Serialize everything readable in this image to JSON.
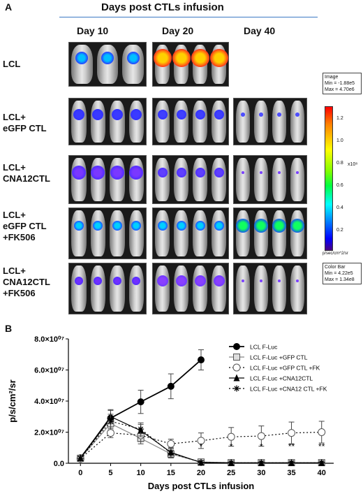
{
  "panel_a": {
    "letter": "A",
    "header": "Days post CTLs infusion",
    "day_labels": [
      "Day 10",
      "Day 20",
      "Day 40"
    ],
    "rows": [
      {
        "label": "LCL"
      },
      {
        "label": "LCL+\neGFP CTL"
      },
      {
        "label": "LCL+\nCNA12CTL"
      },
      {
        "label": "LCL+\neGFP CTL\n+FK506"
      },
      {
        "label": "LCL+\nCNA12CTL\n+FK506"
      }
    ],
    "image_box": {
      "line1": "Image",
      "line2": "Min = -1.88e5",
      "line3": "Max = 4.70e6"
    },
    "colorbar_ticks": [
      "1.2",
      "1.0",
      "0.8",
      "0.6",
      "0.4",
      "0.2"
    ],
    "colorbar_unit": "x10⁸",
    "colorbar_axis": "p/sec/cm^2/sr",
    "colorbar_box": {
      "line1": "Color Bar",
      "line2": "Min = 4.22e5",
      "line3": "Max = 1.34e8"
    }
  },
  "chart_data": {
    "type": "line",
    "panel_letter": "B",
    "xlabel": "Days post CTLs infusion",
    "ylabel": "p/s/cm²/sr",
    "x_ticks": [
      0,
      5,
      10,
      15,
      20,
      25,
      30,
      35,
      40
    ],
    "y_ticks": [
      "0.0",
      "2.0×10⁰⁷",
      "4.0×10⁰⁷",
      "6.0×10⁰⁷",
      "8.0×10⁰⁷"
    ],
    "y_tick_values": [
      0,
      20000000,
      40000000,
      60000000,
      80000000
    ],
    "xlim": [
      -2,
      42
    ],
    "ylim": [
      0,
      80000000
    ],
    "legend_position": "top-right",
    "series": [
      {
        "name": "LCL F-Luc",
        "marker": "filled-circle",
        "line": "solid",
        "x": [
          0,
          5,
          10,
          15,
          20
        ],
        "y": [
          3500000,
          29000000,
          39500000,
          49500000,
          66500000
        ],
        "err": [
          1500000,
          5000000,
          7500000,
          8000000,
          6500000
        ]
      },
      {
        "name": "LCL F-Luc +GFP CTL",
        "marker": "open-square",
        "line": "solid",
        "x": [
          0,
          5,
          10,
          15,
          20,
          25,
          30,
          35,
          40
        ],
        "y": [
          3200000,
          25500000,
          16000000,
          6000000,
          800000,
          400000,
          400000,
          400000,
          400000
        ],
        "err": [
          1000000,
          4000000,
          3500000,
          2500000,
          1200000,
          500000,
          500000,
          500000,
          500000
        ]
      },
      {
        "name": "LCL F-Luc +GFP CTL +FK",
        "marker": "open-circle",
        "line": "dotted",
        "x": [
          0,
          5,
          10,
          15,
          20,
          25,
          30,
          35,
          40
        ],
        "y": [
          3000000,
          19500000,
          18000000,
          12500000,
          14500000,
          17000000,
          17500000,
          19500000,
          20000000
        ],
        "err": [
          1000000,
          3000000,
          4000000,
          3000000,
          5000000,
          6000000,
          6500000,
          7000000,
          7000000
        ]
      },
      {
        "name": "LCL F-Luc +CNA12CTL",
        "marker": "filled-triangle",
        "line": "solid",
        "x": [
          0,
          5,
          10,
          15,
          20,
          25,
          30,
          35,
          40
        ],
        "y": [
          3300000,
          30000000,
          21000000,
          7000000,
          500000,
          300000,
          300000,
          300000,
          300000
        ],
        "err": [
          1000000,
          4500000,
          4000000,
          3000000,
          1000000,
          500000,
          500000,
          500000,
          500000
        ]
      },
      {
        "name": "LCL F-Luc +CNA12 CTL +FK",
        "marker": "star",
        "line": "dotted",
        "x": [
          0,
          5,
          10,
          15,
          20,
          25,
          30,
          35,
          40
        ],
        "y": [
          3100000,
          27000000,
          22000000,
          6500000,
          600000,
          300000,
          300000,
          300000,
          300000
        ],
        "err": [
          1000000,
          4500000,
          4000000,
          3000000,
          1000000,
          500000,
          500000,
          500000,
          500000
        ]
      }
    ],
    "annotations": [
      {
        "x": 20,
        "text": "*"
      },
      {
        "x": 25,
        "text": "*"
      },
      {
        "x": 30,
        "text": "*"
      },
      {
        "x": 35,
        "text": "**"
      },
      {
        "x": 40,
        "text": "**"
      }
    ]
  }
}
